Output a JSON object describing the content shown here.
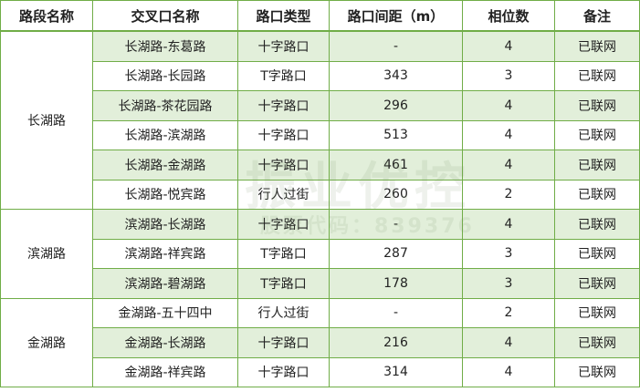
{
  "headers": [
    "路段名称",
    "交叉口名称",
    "路口类型",
    "路口间距（m）",
    "相位数",
    "备注"
  ],
  "groups": [
    {
      "road": "长湖路",
      "rows": [
        [
          "长湖路-东葛路",
          "十字路口",
          "-",
          "4",
          "已联网"
        ],
        [
          "长湖路-长园路",
          "T字路口",
          "343",
          "3",
          "已联网"
        ],
        [
          "长湖路-茶花园路",
          "十字路口",
          "296",
          "4",
          "已联网"
        ],
        [
          "长湖路-滨湖路",
          "十字路口",
          "513",
          "4",
          "已联网"
        ],
        [
          "长湖路-金湖路",
          "十字路口",
          "461",
          "4",
          "已联网"
        ],
        [
          "长湖路-悦宾路",
          "行人过街",
          "260",
          "2",
          "已联网"
        ]
      ]
    },
    {
      "road": "滨湖路",
      "rows": [
        [
          "滨湖路-长湖路",
          "十字路口",
          "-",
          "4",
          "已联网"
        ],
        [
          "滨湖路-祥宾路",
          "T字路口",
          "287",
          "3",
          "已联网"
        ],
        [
          "滨湖路-碧湖路",
          "T字路口",
          "178",
          "3",
          "已联网"
        ]
      ]
    },
    {
      "road": "金湖路",
      "rows": [
        [
          "金湖路-五十四中",
          "行人过街",
          "-",
          "2",
          "已联网"
        ],
        [
          "金湖路-长湖路",
          "十字路口",
          "216",
          "4",
          "已联网"
        ],
        [
          "金湖路-祥宾路",
          "十字路口",
          "314",
          "4",
          "已联网"
        ]
      ]
    }
  ],
  "watermark": {
    "title": "振业优控",
    "subtitle": "股票代码：839376"
  },
  "colors": {
    "border": "#70ad47",
    "alt_row": "#e2efda"
  }
}
